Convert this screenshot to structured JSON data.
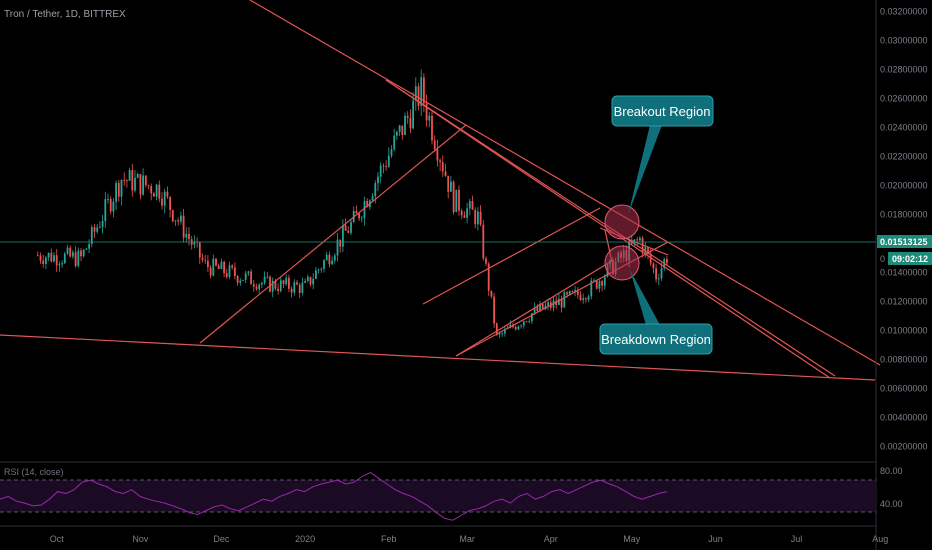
{
  "header": {
    "symbol_title": "Tron / Tether, 1D, BITTREX"
  },
  "colors": {
    "background": "#000000",
    "up": "#26a69a",
    "down": "#ef5350",
    "trendline": "#e05555",
    "annotation_fill": "#0f6f7a",
    "circle_fill": "#b0304a",
    "rsi_line": "#9c27b0",
    "price_line": "#1e8a7a"
  },
  "chart_data": [
    {
      "type": "candlestick",
      "title": "Tron / Tether, 1D, BITTREX",
      "xlabel": "",
      "ylabel": "",
      "x_ticks": [
        "Oct",
        "Nov",
        "Dec",
        "2020",
        "Feb",
        "Mar",
        "Apr",
        "May",
        "Jun",
        "Jul",
        "Aug"
      ],
      "y_ticks": [
        "0.03200000",
        "0.03000000",
        "0.02800000",
        "0.02600000",
        "0.02400000",
        "0.02200000",
        "0.02000000",
        "0.01800000",
        "0.01600000",
        "0.01513125",
        "0.01400000",
        "0.01200000",
        "0.01000000",
        "0.00800000",
        "0.00600000",
        "0.00400000",
        "0.00200000"
      ],
      "y_range": [
        0.0,
        0.0326
      ],
      "grid": false,
      "last_price": "0.01513125",
      "countdown": "09:02:12",
      "price_key_points": [
        {
          "date": "2019-09-24",
          "price": 0.0152
        },
        {
          "date": "2019-10-10",
          "price": 0.015
        },
        {
          "date": "2019-10-25",
          "price": 0.0205
        },
        {
          "date": "2019-11-08",
          "price": 0.0198
        },
        {
          "date": "2019-11-25",
          "price": 0.0145
        },
        {
          "date": "2019-12-18",
          "price": 0.0132
        },
        {
          "date": "2020-01-01",
          "price": 0.013
        },
        {
          "date": "2020-01-20",
          "price": 0.0178
        },
        {
          "date": "2020-02-13",
          "price": 0.0265
        },
        {
          "date": "2020-02-25",
          "price": 0.019
        },
        {
          "date": "2020-03-05",
          "price": 0.0178
        },
        {
          "date": "2020-03-12",
          "price": 0.0095
        },
        {
          "date": "2020-03-25",
          "price": 0.0112
        },
        {
          "date": "2020-04-15",
          "price": 0.0128
        },
        {
          "date": "2020-05-04",
          "price": 0.0163
        },
        {
          "date": "2020-05-10",
          "price": 0.0138
        },
        {
          "date": "2020-05-14",
          "price": 0.0151
        }
      ],
      "annotations": [
        {
          "label": "Breakout Region"
        },
        {
          "label": "Breakdown Region"
        }
      ]
    },
    {
      "type": "line",
      "title": "RSI (14, close)",
      "y_ticks": [
        "80.00",
        "40.00"
      ],
      "y_range": [
        25,
        90
      ],
      "overbought": 70,
      "oversold": 30,
      "series": [
        {
          "values": [
            52,
            55,
            50,
            48,
            45,
            46,
            52,
            60,
            58,
            62,
            70,
            72,
            68,
            65,
            60,
            58,
            62,
            55,
            52,
            50,
            48,
            45,
            42,
            38,
            36,
            40,
            44,
            46,
            42,
            40,
            44,
            48,
            52,
            50,
            55,
            58,
            62,
            60,
            65,
            68,
            70,
            72,
            68,
            70,
            76,
            80,
            74,
            68,
            62,
            58,
            55,
            50,
            45,
            38,
            32,
            30,
            35,
            40,
            42,
            45,
            50,
            52,
            48,
            55,
            58,
            52,
            55,
            60,
            62,
            58,
            62,
            66,
            70,
            72,
            68,
            65,
            60,
            55,
            52,
            55,
            58,
            60
          ]
        }
      ]
    }
  ]
}
